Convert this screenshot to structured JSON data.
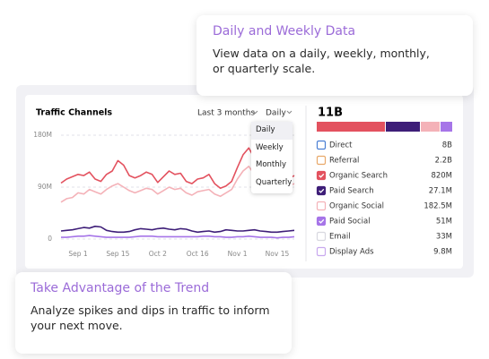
{
  "callouts": [
    {
      "title": "Daily and Weekly Data",
      "text": "View data on a daily, weekly, monthly, or quarterly scale."
    },
    {
      "title": "Take Advantage of the Trend",
      "text": "Analyze spikes and dips in traffic to inform your next move."
    }
  ],
  "panel": {
    "title": "Traffic Channels",
    "range": "Last 3 months",
    "granularity": "Daily",
    "menu": [
      "Daily",
      "Weekly",
      "Monthly",
      "Quarterly"
    ],
    "total": "11B",
    "channels": [
      {
        "name": "Direct",
        "value": "8B",
        "checked": false,
        "color": "#4a7fd4"
      },
      {
        "name": "Referral",
        "value": "2.2B",
        "checked": false,
        "color": "#e8a96a"
      },
      {
        "name": "Organic Search",
        "value": "820M",
        "checked": true,
        "color": "#e3525f"
      },
      {
        "name": "Paid Search",
        "value": "27.1M",
        "checked": true,
        "color": "#3e1e78"
      },
      {
        "name": "Organic Social",
        "value": "182.5M",
        "checked": false,
        "color": "#f4b2b8"
      },
      {
        "name": "Paid Social",
        "value": "51M",
        "checked": true,
        "color": "#a675e8"
      },
      {
        "name": "Email",
        "value": "33M",
        "checked": false,
        "color": "#d8d8e0"
      },
      {
        "name": "Display Ads",
        "value": "9.8M",
        "checked": false,
        "color": "#c8a8ee"
      }
    ]
  },
  "chart_data": {
    "type": "line",
    "categories": [
      null,
      null,
      null,
      "Sep 1",
      null,
      null,
      null,
      null,
      null,
      null,
      "Sep 15",
      null,
      null,
      null,
      null,
      null,
      null,
      "Oct 2",
      null,
      null,
      null,
      null,
      null,
      null,
      "Oct 16",
      null,
      null,
      null,
      null,
      null,
      null,
      "Nov 1",
      null,
      null,
      null,
      null,
      null,
      null,
      "Nov 15",
      null,
      null,
      null
    ],
    "series": [
      {
        "name": "Organic Search",
        "color": "#e3525f",
        "values": [
          97,
          104,
          108,
          112,
          110,
          116,
          104,
          100,
          112,
          118,
          136,
          128,
          110,
          106,
          110,
          116,
          112,
          98,
          108,
          118,
          112,
          114,
          100,
          96,
          104,
          106,
          112,
          96,
          88,
          92,
          100,
          124,
          146,
          158,
          140,
          118,
          110,
          104,
          100,
          96,
          104,
          110
        ]
      },
      {
        "name": "Organic Social",
        "color": "#f4b2b8",
        "values": [
          64,
          70,
          72,
          80,
          78,
          86,
          82,
          78,
          86,
          92,
          96,
          90,
          84,
          80,
          84,
          88,
          86,
          78,
          84,
          90,
          86,
          88,
          80,
          76,
          82,
          84,
          86,
          78,
          74,
          80,
          86,
          104,
          118,
          126,
          112,
          96,
          90,
          86,
          84,
          88,
          92,
          96
        ]
      },
      {
        "name": "Paid Search",
        "color": "#3e1e78",
        "values": [
          14,
          15,
          16,
          18,
          20,
          19,
          22,
          21,
          15,
          13,
          12,
          12,
          13,
          16,
          18,
          17,
          16,
          18,
          19,
          17,
          16,
          18,
          17,
          14,
          12,
          13,
          14,
          12,
          13,
          16,
          15,
          14,
          14,
          15,
          16,
          14,
          13,
          12,
          12,
          13,
          14,
          15
        ]
      },
      {
        "name": "Paid Social",
        "color": "#a675e8",
        "values": [
          3,
          3,
          4,
          5,
          5,
          6,
          5,
          4,
          3,
          3,
          3,
          3,
          3,
          4,
          5,
          5,
          5,
          4,
          4,
          4,
          4,
          4,
          4,
          4,
          4,
          5,
          5,
          4,
          4,
          3,
          3,
          4,
          4,
          5,
          4,
          3,
          3,
          3,
          2,
          3,
          3,
          4
        ]
      }
    ],
    "ylim": [
      0,
      180
    ],
    "yticks": [
      0,
      {
        "value": 90,
        "label": "90M"
      },
      {
        "value": 180,
        "label": "180M"
      }
    ],
    "grid": true
  }
}
